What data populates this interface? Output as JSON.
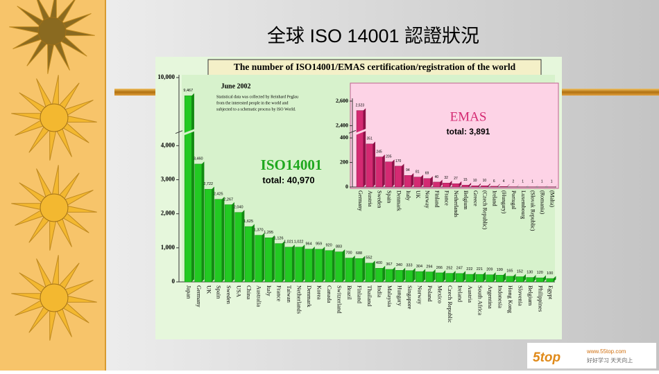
{
  "slide_title": "全球 ISO 14001  認證狀況",
  "chart_title": "The number of ISO14001/EMAS certification/registration of the world",
  "date": "June 2002",
  "note": [
    "Statistical data was collected by Reinhard Peglau",
    "from the interested people in the world and",
    "subjected to a schematic process by ISO World."
  ],
  "logo": {
    "brand": "5top",
    "url": "www.55top.com",
    "slogan": "好好学习 天天向上"
  },
  "chart_data": [
    {
      "type": "bar",
      "name": "ISO14001",
      "total": "total: 40,970",
      "color": "#22c922",
      "categories": [
        "Japan",
        "Germany",
        "UK",
        "Spain",
        "Sweden",
        "USA",
        "China",
        "Australia",
        "Italy",
        "France",
        "Taiwan",
        "Netherlands",
        "Denmark",
        "Korea",
        "Canada",
        "Switzerland",
        "Brazil",
        "Finland",
        "Thailand",
        "India",
        "Malaysia",
        "Hungary",
        "Singapore",
        "Norway",
        "Poland",
        "Mexico",
        "Czech Republic",
        "Ireland",
        "Austria",
        "South Africa",
        "Argentina",
        "Indonesia",
        "Hong Kong",
        "Slovenia",
        "Belgium",
        "Philippines",
        "Egypt"
      ],
      "values": [
        9467,
        3460,
        2722,
        2425,
        2267,
        2040,
        1625,
        1370,
        1295,
        1126,
        1021,
        1022,
        964,
        959,
        920,
        883,
        700,
        688,
        552,
        400,
        367,
        340,
        333,
        304,
        294,
        266,
        252,
        247,
        222,
        221,
        209,
        199,
        165,
        152,
        130,
        120,
        100
      ],
      "value_labels": [
        "9,467",
        "3,460",
        "2,722",
        "2,425",
        "2,267",
        "2,040",
        "1,625",
        "1,370",
        "1,295",
        "1,126",
        "1,021",
        "1,022",
        "964",
        "959",
        "920",
        "883",
        "700",
        "688",
        "552",
        "400",
        "367",
        "340",
        "333",
        "304",
        "294",
        "266",
        "252",
        "247",
        "222",
        "221",
        "209",
        "199",
        "165",
        "152",
        "130",
        "120",
        "100"
      ],
      "ylim": [
        0,
        10000
      ],
      "axis_break": [
        4400,
        8400
      ],
      "yticks": [
        0,
        {
          "value": 1000,
          "label": "1,000"
        },
        {
          "value": 2000,
          "label": "2,000"
        },
        {
          "value": 3000,
          "label": "3,000"
        },
        {
          "value": 4000,
          "label": "4,000"
        },
        {
          "value": 10000,
          "label": "10,000"
        }
      ]
    },
    {
      "type": "bar",
      "name": "EMAS",
      "total": "total: 3,891",
      "color": "#d42a72",
      "categories": [
        "Germany",
        "Austria",
        "Sweden",
        "Spain",
        "Denmark",
        "Italy",
        "UK",
        "Norway",
        "Finland",
        "France",
        "Netherlands",
        "Belgium",
        "Greece",
        "(Czech Republic)",
        "Ireland",
        "(Hungary)",
        "Portugal",
        "Luxembourg",
        "(Slovak Republic)",
        "(Romania)",
        "(Malta)"
      ],
      "values": [
        2523,
        351,
        245,
        205,
        170,
        94,
        81,
        69,
        40,
        32,
        27,
        15,
        10,
        10,
        6,
        4,
        2,
        1,
        1,
        1,
        1
      ],
      "value_labels": [
        "2,523",
        "351",
        "245",
        "205",
        "170",
        "94",
        "81",
        "69",
        "40",
        "32",
        "27",
        "15",
        "10",
        "10",
        "6",
        "4",
        "2",
        "1",
        "1",
        "1",
        "1"
      ],
      "ylim": [
        0,
        2600
      ],
      "axis_break": [
        450,
        2350
      ],
      "yticks": [
        0,
        200,
        400,
        {
          "value": 2400,
          "label": "2,400"
        },
        {
          "value": 2600,
          "label": "2,600"
        }
      ]
    }
  ]
}
